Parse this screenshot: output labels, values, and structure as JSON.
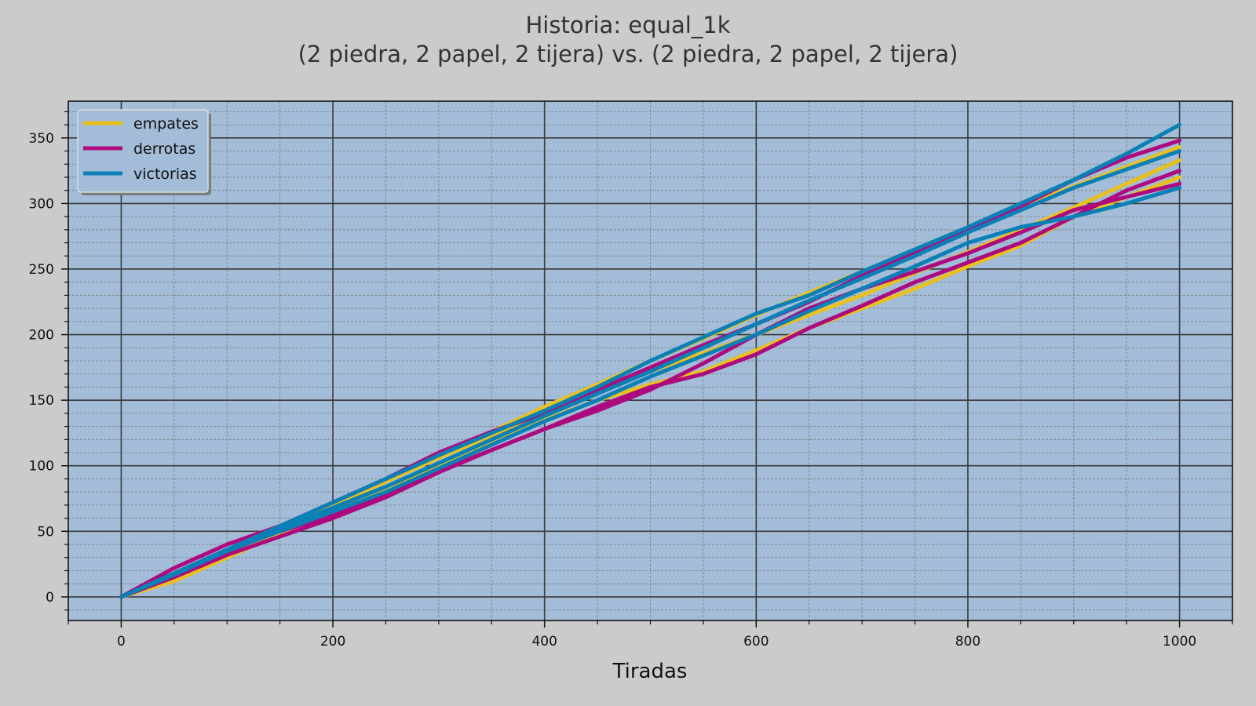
{
  "chart_data": {
    "type": "line",
    "title": "Historia: equal_1k",
    "subtitle": "(2 piedra, 2 papel, 2 tijera) vs. (2 piedra, 2 papel, 2 tijera)",
    "xlabel": "Tiradas",
    "ylabel": "",
    "xlim": [
      -50,
      1050
    ],
    "ylim": [
      -18,
      378
    ],
    "xticks": [
      0,
      200,
      400,
      600,
      800,
      1000
    ],
    "yticks": [
      0,
      50,
      100,
      150,
      200,
      250,
      300,
      350
    ],
    "grid": true,
    "legend_position": "top-left",
    "legend": [
      {
        "label": "empates",
        "color": "#e9c11f"
      },
      {
        "label": "derrotas",
        "color": "#ae0a7f"
      },
      {
        "label": "victorias",
        "color": "#0a80b6"
      }
    ],
    "series": [
      {
        "group": "empates",
        "color": "#e9c11f",
        "x": [
          0,
          50,
          100,
          150,
          200,
          250,
          300,
          350,
          400,
          450,
          500,
          550,
          600,
          650,
          700,
          750,
          800,
          850,
          900,
          950,
          1000
        ],
        "y": [
          0,
          15,
          30,
          50,
          70,
          88,
          106,
          123,
          140,
          158,
          172,
          186,
          200,
          215,
          230,
          247,
          263,
          280,
          297,
          315,
          333
        ]
      },
      {
        "group": "empates",
        "color": "#e9c11f",
        "x": [
          0,
          50,
          100,
          150,
          200,
          250,
          300,
          350,
          400,
          450,
          500,
          550,
          600,
          650,
          700,
          750,
          800,
          850,
          900,
          950,
          1000
        ],
        "y": [
          0,
          16,
          34,
          52,
          70,
          88,
          108,
          126,
          145,
          162,
          180,
          197,
          215,
          232,
          248,
          265,
          282,
          298,
          313,
          328,
          343
        ]
      },
      {
        "group": "empates",
        "color": "#e9c11f",
        "x": [
          0,
          50,
          100,
          150,
          200,
          250,
          300,
          350,
          400,
          450,
          500,
          550,
          600,
          650,
          700,
          750,
          800,
          850,
          900,
          950,
          1000
        ],
        "y": [
          0,
          12,
          30,
          48,
          66,
          82,
          100,
          118,
          135,
          150,
          162,
          172,
          188,
          205,
          220,
          235,
          252,
          268,
          290,
          305,
          320
        ]
      },
      {
        "group": "derrotas",
        "color": "#ae0a7f",
        "x": [
          0,
          50,
          100,
          150,
          200,
          250,
          300,
          350,
          400,
          450,
          500,
          550,
          600,
          650,
          700,
          750,
          800,
          850,
          900,
          950,
          1000
        ],
        "y": [
          0,
          22,
          40,
          54,
          72,
          90,
          110,
          126,
          140,
          158,
          175,
          192,
          208,
          225,
          245,
          262,
          280,
          298,
          318,
          335,
          348
        ]
      },
      {
        "group": "derrotas",
        "color": "#ae0a7f",
        "x": [
          0,
          50,
          100,
          150,
          200,
          250,
          300,
          350,
          400,
          450,
          500,
          550,
          600,
          650,
          700,
          750,
          800,
          850,
          900,
          950,
          1000
        ],
        "y": [
          0,
          18,
          36,
          50,
          62,
          78,
          96,
          112,
          128,
          145,
          160,
          170,
          185,
          205,
          222,
          240,
          255,
          270,
          290,
          310,
          325
        ]
      },
      {
        "group": "derrotas",
        "color": "#ae0a7f",
        "x": [
          0,
          50,
          100,
          150,
          200,
          250,
          300,
          350,
          400,
          450,
          500,
          550,
          600,
          650,
          700,
          750,
          800,
          850,
          900,
          950,
          1000
        ],
        "y": [
          0,
          15,
          32,
          46,
          60,
          76,
          95,
          112,
          128,
          142,
          158,
          178,
          200,
          220,
          235,
          248,
          262,
          278,
          295,
          305,
          315
        ]
      },
      {
        "group": "victorias",
        "color": "#0a80b6",
        "x": [
          0,
          50,
          100,
          150,
          200,
          250,
          300,
          350,
          400,
          450,
          500,
          550,
          600,
          650,
          700,
          750,
          800,
          850,
          900,
          950,
          1000
        ],
        "y": [
          0,
          18,
          36,
          54,
          72,
          90,
          108,
          125,
          142,
          160,
          180,
          198,
          216,
          230,
          248,
          265,
          282,
          300,
          318,
          338,
          360
        ]
      },
      {
        "group": "victorias",
        "color": "#0a80b6",
        "x": [
          0,
          50,
          100,
          150,
          200,
          250,
          300,
          350,
          400,
          450,
          500,
          550,
          600,
          650,
          700,
          750,
          800,
          850,
          900,
          950,
          1000
        ],
        "y": [
          0,
          17,
          35,
          52,
          68,
          84,
          102,
          120,
          138,
          155,
          172,
          190,
          208,
          226,
          243,
          260,
          278,
          295,
          312,
          326,
          340
        ]
      },
      {
        "group": "victorias",
        "color": "#0a80b6",
        "x": [
          0,
          50,
          100,
          150,
          200,
          250,
          300,
          350,
          400,
          450,
          500,
          550,
          600,
          650,
          700,
          750,
          800,
          850,
          900,
          950,
          1000
        ],
        "y": [
          0,
          17,
          35,
          50,
          65,
          80,
          98,
          116,
          134,
          150,
          168,
          184,
          200,
          218,
          235,
          252,
          270,
          282,
          290,
          300,
          312
        ]
      }
    ]
  }
}
